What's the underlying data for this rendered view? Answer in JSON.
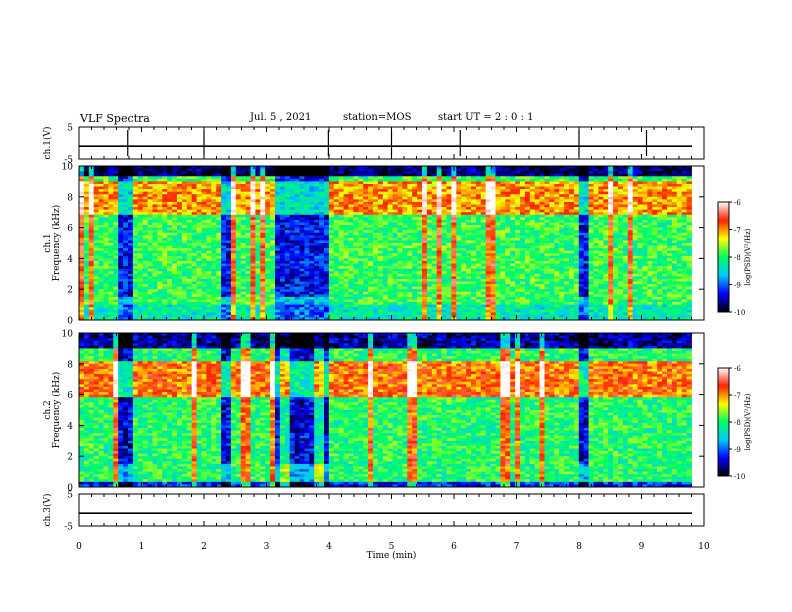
{
  "header": {
    "title": "VLF Spectra",
    "date": "Jul. 5 , 2021",
    "station": "station=MOS",
    "start": "start UT = 2 : 0 : 1"
  },
  "chart_data": {
    "type": "heatmap",
    "xlabel": "Time (min)",
    "xlim": [
      0,
      10
    ],
    "xticks": [
      "0",
      "1",
      "2",
      "3",
      "4",
      "5",
      "6",
      "7",
      "8",
      "9",
      "10"
    ],
    "panels": [
      {
        "id": "ch1-waveform",
        "ylabel": "ch.1(V)",
        "ylim": [
          -5,
          5
        ],
        "yticks": [
          "5",
          "-5"
        ],
        "kind": "waveform",
        "level": -1,
        "spikes": [
          0.78,
          2.0,
          3.99,
          5.0,
          6.1,
          8.0,
          9.08
        ]
      },
      {
        "id": "ch1-spectrogram",
        "ylabel": "ch.1\nFrequency (kHz)",
        "ylim": [
          0,
          10
        ],
        "yticks": [
          "0",
          "2",
          "4",
          "6",
          "8",
          "10"
        ],
        "kind": "spectrogram",
        "data_end_min": 9.8
      },
      {
        "id": "ch2-spectrogram",
        "ylabel": "ch.2\nFrequency (kHz)",
        "ylim": [
          0,
          10
        ],
        "yticks": [
          "0",
          "2",
          "4",
          "6",
          "8",
          "10"
        ],
        "kind": "spectrogram",
        "data_end_min": 9.8
      },
      {
        "id": "ch3-waveform",
        "ylabel": "ch.3(V)",
        "ylim": [
          -5,
          5
        ],
        "yticks": [
          "5",
          "-5"
        ],
        "kind": "waveform",
        "level": -1
      }
    ],
    "colorbars": [
      {
        "label": "log(PSD)(V²/Hz)",
        "range": [
          -10,
          -6
        ],
        "ticks": [
          "-6",
          "-7",
          "-8",
          "-9",
          "-10"
        ]
      },
      {
        "label": "log(PSD)(V²/Hz)",
        "range": [
          -10,
          -6
        ],
        "ticks": [
          "-6",
          "-7",
          "-8",
          "-9",
          "-10"
        ]
      }
    ],
    "colormap": [
      "#000000",
      "#0000ff",
      "#00c8ff",
      "#00ff60",
      "#ffff00",
      "#ff2000",
      "#ffffff"
    ]
  }
}
